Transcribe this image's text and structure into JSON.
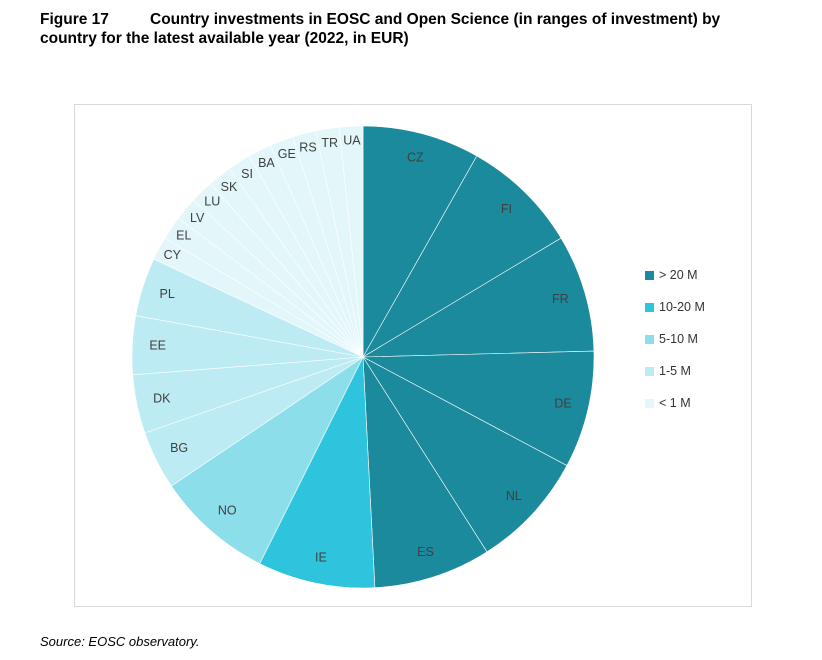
{
  "figure": {
    "number": "Figure 17",
    "title_line1": "Country investments in EOSC and Open Science (in ranges of investment) by",
    "title_line2": "country for the latest available year (2022, in EUR)"
  },
  "source": "Source: EOSC observatory.",
  "chart_data": {
    "type": "pie",
    "start_angle_deg": 0,
    "direction": "clockwise",
    "legend_position": "right",
    "ranges": [
      {
        "name": "> 20 M",
        "color": "#1a8a9c"
      },
      {
        "name": "10-20 M",
        "color": "#2fc4de"
      },
      {
        "name": "5-10 M",
        "color": "#8ddeeb"
      },
      {
        "name": "1-5 M",
        "color": "#bcebf4"
      },
      {
        "name": "< 1 M",
        "color": "#e3f7fb"
      }
    ],
    "slices": [
      {
        "label": "CZ",
        "range": 0,
        "value": 1
      },
      {
        "label": "FI",
        "range": 0,
        "value": 1
      },
      {
        "label": "FR",
        "range": 0,
        "value": 1
      },
      {
        "label": "DE",
        "range": 0,
        "value": 1
      },
      {
        "label": "NL",
        "range": 0,
        "value": 1
      },
      {
        "label": "ES",
        "range": 0,
        "value": 1
      },
      {
        "label": "IE",
        "range": 1,
        "value": 1
      },
      {
        "label": "NO",
        "range": 2,
        "value": 1
      },
      {
        "label": "BG",
        "range": 3,
        "value": 0.5
      },
      {
        "label": "DK",
        "range": 3,
        "value": 0.5
      },
      {
        "label": "EE",
        "range": 3,
        "value": 0.5
      },
      {
        "label": "PL",
        "range": 3,
        "value": 0.5
      },
      {
        "label": "CY",
        "range": 4,
        "value": 0.2
      },
      {
        "label": "EL",
        "range": 4,
        "value": 0.2
      },
      {
        "label": "LV",
        "range": 4,
        "value": 0.2
      },
      {
        "label": "LU",
        "range": 4,
        "value": 0.2
      },
      {
        "label": "SK",
        "range": 4,
        "value": 0.2
      },
      {
        "label": "SI",
        "range": 4,
        "value": 0.2
      },
      {
        "label": "BA",
        "range": 4,
        "value": 0.2
      },
      {
        "label": "GE",
        "range": 4,
        "value": 0.2
      },
      {
        "label": "RS",
        "range": 4,
        "value": 0.2
      },
      {
        "label": "TR",
        "range": 4,
        "value": 0.2
      },
      {
        "label": "UA",
        "range": 4,
        "value": 0.2
      }
    ]
  }
}
